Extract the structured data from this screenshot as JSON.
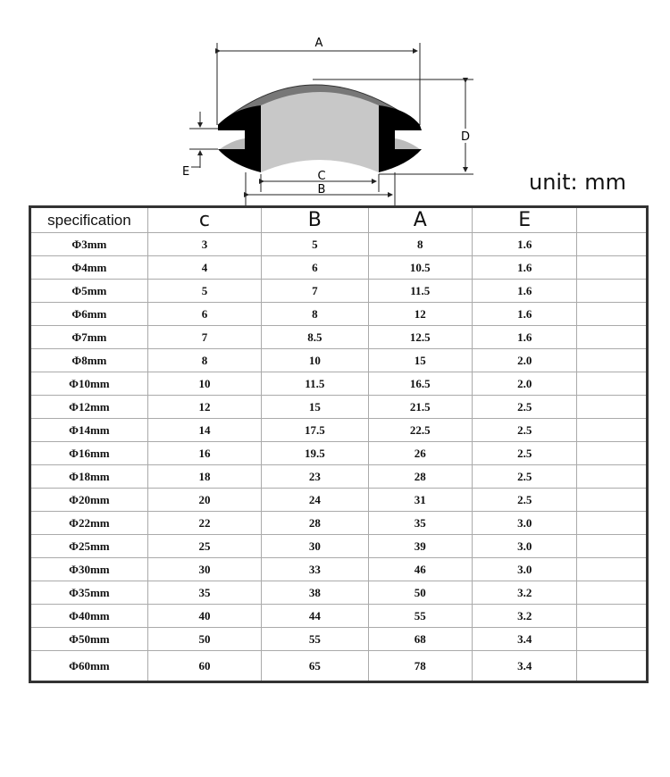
{
  "diagram": {
    "labels": {
      "a": "A",
      "b": "B",
      "c": "C",
      "d": "D",
      "e": "E"
    }
  },
  "unit_label": "unit: mm",
  "table": {
    "headers": [
      "specification",
      "c",
      "B",
      "A",
      "E",
      ""
    ],
    "rows": [
      [
        "Φ3mm",
        "3",
        "5",
        "8",
        "1.6"
      ],
      [
        "Φ4mm",
        "4",
        "6",
        "10.5",
        "1.6"
      ],
      [
        "Φ5mm",
        "5",
        "7",
        "11.5",
        "1.6"
      ],
      [
        "Φ6mm",
        "6",
        "8",
        "12",
        "1.6"
      ],
      [
        "Φ7mm",
        "7",
        "8.5",
        "12.5",
        "1.6"
      ],
      [
        "Φ8mm",
        "8",
        "10",
        "15",
        "2.0"
      ],
      [
        "Φ10mm",
        "10",
        "11.5",
        "16.5",
        "2.0"
      ],
      [
        "Φ12mm",
        "12",
        "15",
        "21.5",
        "2.5"
      ],
      [
        "Φ14mm",
        "14",
        "17.5",
        "22.5",
        "2.5"
      ],
      [
        "Φ16mm",
        "16",
        "19.5",
        "26",
        "2.5"
      ],
      [
        "Φ18mm",
        "18",
        "23",
        "28",
        "2.5"
      ],
      [
        "Φ20mm",
        "20",
        "24",
        "31",
        "2.5"
      ],
      [
        "Φ22mm",
        "22",
        "28",
        "35",
        "3.0"
      ],
      [
        "Φ25mm",
        "25",
        "30",
        "39",
        "3.0"
      ],
      [
        "Φ30mm",
        "30",
        "33",
        "46",
        "3.0"
      ],
      [
        "Φ35mm",
        "35",
        "38",
        "50",
        "3.2"
      ],
      [
        "Φ40mm",
        "40",
        "44",
        "55",
        "3.2"
      ],
      [
        "Φ50mm",
        "50",
        "55",
        "68",
        "3.4"
      ],
      [
        "Φ60mm",
        "60",
        "65",
        "78",
        "3.4"
      ]
    ]
  }
}
